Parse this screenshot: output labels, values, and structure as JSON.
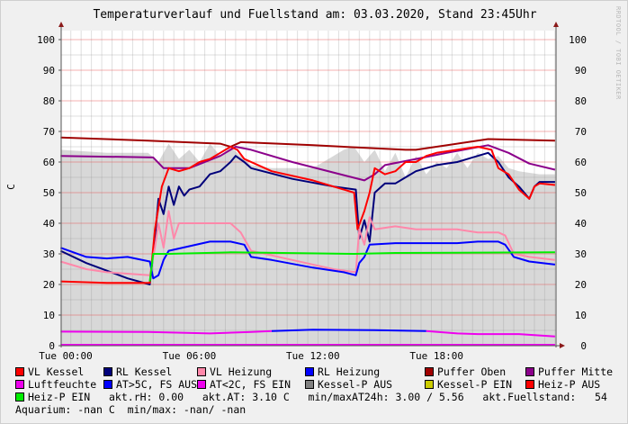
{
  "chart_data": {
    "type": "line",
    "title": "Temperaturverlauf und Fuellstand am: 03.03.2020, Stand 23:45Uhr",
    "ylabel": "C",
    "xlabel": "",
    "ylim": [
      0,
      103
    ],
    "xlim": [
      "Mon 23:45",
      "Tue 23:45"
    ],
    "y_ticks": [
      "0",
      "10",
      "20",
      "30",
      "40",
      "50",
      "60",
      "70",
      "80",
      "90",
      "100"
    ],
    "x_ticks": [
      "Tue 00:00",
      "Tue 06:00",
      "Tue 12:00",
      "Tue 18:00"
    ],
    "grid": true,
    "watermark": "RRDTOOL / TOBI OETIKER",
    "series": [
      {
        "name": "Kessel-P AUS",
        "color": "#d8d8d8",
        "kind": "area",
        "points": [
          [
            "-00:15",
            64
          ],
          [
            "02:00",
            63
          ],
          [
            "04:00",
            63
          ],
          [
            "04:30",
            60
          ],
          [
            "05:00",
            66
          ],
          [
            "05:30",
            61
          ],
          [
            "06:00",
            64
          ],
          [
            "06:30",
            60
          ],
          [
            "07:00",
            66
          ],
          [
            "07:30",
            62
          ],
          [
            "08:00",
            65
          ],
          [
            "08:30",
            62
          ],
          [
            "09:00",
            59
          ],
          [
            "10:00",
            58
          ],
          [
            "11:00",
            58
          ],
          [
            "12:00",
            58
          ],
          [
            "12:30",
            60
          ],
          [
            "13:00",
            62
          ],
          [
            "13:30",
            64
          ],
          [
            "14:00",
            65
          ],
          [
            "14:30",
            60
          ],
          [
            "15:00",
            64
          ],
          [
            "15:30",
            57
          ],
          [
            "16:00",
            63
          ],
          [
            "16:30",
            55
          ],
          [
            "17:00",
            62
          ],
          [
            "17:30",
            56
          ],
          [
            "18:00",
            60
          ],
          [
            "18:30",
            58
          ],
          [
            "19:00",
            63
          ],
          [
            "19:30",
            58
          ],
          [
            "20:00",
            63
          ],
          [
            "20:30",
            61
          ],
          [
            "21:00",
            62
          ],
          [
            "21:30",
            58
          ],
          [
            "22:00",
            57
          ],
          [
            "23:00",
            56
          ],
          [
            "23:45",
            56
          ]
        ]
      },
      {
        "name": "Puffer Oben",
        "color": "#a00000",
        "points": [
          [
            "-00:15",
            68
          ],
          [
            "04:00",
            67
          ],
          [
            "07:30",
            66
          ],
          [
            "08:00",
            65
          ],
          [
            "08:30",
            66.5
          ],
          [
            "12:00",
            65.5
          ],
          [
            "16:30",
            64
          ],
          [
            "17:00",
            64
          ],
          [
            "18:00",
            65
          ],
          [
            "20:30",
            67.5
          ],
          [
            "23:45",
            67
          ]
        ]
      },
      {
        "name": "Puffer Mitte",
        "color": "#8b008b",
        "points": [
          [
            "-00:15",
            62
          ],
          [
            "04:15",
            61.5
          ],
          [
            "04:45",
            58
          ],
          [
            "06:00",
            58
          ],
          [
            "07:30",
            62
          ],
          [
            "08:15",
            65
          ],
          [
            "09:00",
            64
          ],
          [
            "11:00",
            60
          ],
          [
            "14:30",
            54
          ],
          [
            "15:00",
            56
          ],
          [
            "15:30",
            59
          ],
          [
            "17:00",
            61
          ],
          [
            "18:30",
            63
          ],
          [
            "20:30",
            65.5
          ],
          [
            "21:30",
            63
          ],
          [
            "22:30",
            59.5
          ],
          [
            "23:45",
            57.5
          ]
        ]
      },
      {
        "name": "RL Kessel",
        "color": "#00007a",
        "points": [
          [
            "-00:15",
            31
          ],
          [
            "01:00",
            27
          ],
          [
            "02:00",
            24.5
          ],
          [
            "03:00",
            22
          ],
          [
            "04:05",
            20
          ],
          [
            "04:20",
            35
          ],
          [
            "04:30",
            48
          ],
          [
            "04:45",
            43
          ],
          [
            "05:00",
            52
          ],
          [
            "05:15",
            46
          ],
          [
            "05:30",
            52
          ],
          [
            "05:45",
            49
          ],
          [
            "06:00",
            51
          ],
          [
            "06:30",
            52
          ],
          [
            "07:00",
            56
          ],
          [
            "07:30",
            57
          ],
          [
            "08:00",
            60
          ],
          [
            "08:15",
            62
          ],
          [
            "08:40",
            60
          ],
          [
            "09:00",
            58
          ],
          [
            "11:00",
            54.5
          ],
          [
            "13:00",
            52
          ],
          [
            "14:05",
            51
          ],
          [
            "14:15",
            35
          ],
          [
            "14:30",
            41
          ],
          [
            "14:45",
            34
          ],
          [
            "15:00",
            50
          ],
          [
            "15:30",
            53
          ],
          [
            "16:00",
            53
          ],
          [
            "16:30",
            55
          ],
          [
            "17:00",
            57
          ],
          [
            "17:30",
            58
          ],
          [
            "18:00",
            59
          ],
          [
            "19:00",
            60
          ],
          [
            "20:00",
            62
          ],
          [
            "20:30",
            63
          ],
          [
            "21:00",
            60
          ],
          [
            "21:30",
            55
          ],
          [
            "22:00",
            52
          ],
          [
            "22:30",
            48
          ],
          [
            "22:45",
            52
          ],
          [
            "23:00",
            53.5
          ],
          [
            "23:45",
            53.5
          ]
        ]
      },
      {
        "name": "VL Kessel",
        "color": "#ff0000",
        "points": [
          [
            "-00:15",
            21
          ],
          [
            "02:00",
            20.5
          ],
          [
            "04:05",
            20.5
          ],
          [
            "04:20",
            38
          ],
          [
            "04:40",
            52
          ],
          [
            "05:00",
            58
          ],
          [
            "05:30",
            57
          ],
          [
            "06:00",
            58
          ],
          [
            "06:30",
            60
          ],
          [
            "07:00",
            61
          ],
          [
            "07:30",
            63
          ],
          [
            "08:00",
            65
          ],
          [
            "08:20",
            64
          ],
          [
            "08:40",
            61
          ],
          [
            "10:00",
            57
          ],
          [
            "12:00",
            54
          ],
          [
            "14:00",
            50
          ],
          [
            "14:10",
            38
          ],
          [
            "14:30",
            44
          ],
          [
            "14:45",
            50
          ],
          [
            "15:00",
            58
          ],
          [
            "15:30",
            56
          ],
          [
            "16:00",
            57
          ],
          [
            "16:30",
            60
          ],
          [
            "17:00",
            60
          ],
          [
            "17:30",
            62
          ],
          [
            "18:00",
            63
          ],
          [
            "19:00",
            64
          ],
          [
            "20:00",
            65
          ],
          [
            "20:40",
            64
          ],
          [
            "21:00",
            58
          ],
          [
            "21:30",
            56
          ],
          [
            "22:00",
            51
          ],
          [
            "22:30",
            48
          ],
          [
            "22:45",
            52
          ],
          [
            "23:00",
            53
          ],
          [
            "23:45",
            52.5
          ]
        ]
      },
      {
        "name": "VL Heizung",
        "color": "#ff88aa",
        "points": [
          [
            "-00:15",
            27.5
          ],
          [
            "01:00",
            25
          ],
          [
            "02:00",
            24
          ],
          [
            "04:05",
            23
          ],
          [
            "04:20",
            32
          ],
          [
            "04:30",
            40
          ],
          [
            "04:45",
            32
          ],
          [
            "05:00",
            44
          ],
          [
            "05:15",
            35
          ],
          [
            "05:30",
            40
          ],
          [
            "06:00",
            40
          ],
          [
            "07:00",
            40
          ],
          [
            "08:00",
            40
          ],
          [
            "08:30",
            37
          ],
          [
            "09:00",
            31
          ],
          [
            "11:00",
            28
          ],
          [
            "13:00",
            25
          ],
          [
            "14:05",
            24
          ],
          [
            "14:15",
            38
          ],
          [
            "14:30",
            33
          ],
          [
            "14:45",
            42
          ],
          [
            "15:00",
            38
          ],
          [
            "16:00",
            39
          ],
          [
            "17:00",
            38
          ],
          [
            "18:00",
            38
          ],
          [
            "19:00",
            38
          ],
          [
            "20:00",
            37
          ],
          [
            "21:00",
            37
          ],
          [
            "21:20",
            36
          ],
          [
            "21:45",
            30
          ],
          [
            "22:30",
            29
          ],
          [
            "23:45",
            28
          ]
        ]
      },
      {
        "name": "RL Heizung",
        "color": "#0000ff",
        "points": [
          [
            "-00:15",
            32
          ],
          [
            "01:00",
            29
          ],
          [
            "02:00",
            28.5
          ],
          [
            "03:00",
            29
          ],
          [
            "04:05",
            27.5
          ],
          [
            "04:15",
            22
          ],
          [
            "04:30",
            23
          ],
          [
            "04:45",
            28
          ],
          [
            "05:00",
            31
          ],
          [
            "06:00",
            32.5
          ],
          [
            "07:00",
            34
          ],
          [
            "08:00",
            34
          ],
          [
            "08:40",
            33
          ],
          [
            "09:00",
            29
          ],
          [
            "10:00",
            28
          ],
          [
            "12:00",
            25.5
          ],
          [
            "13:30",
            24
          ],
          [
            "14:05",
            23
          ],
          [
            "14:15",
            27
          ],
          [
            "14:30",
            29
          ],
          [
            "14:45",
            33
          ],
          [
            "16:00",
            33.5
          ],
          [
            "18:00",
            33.5
          ],
          [
            "19:00",
            33.5
          ],
          [
            "20:00",
            34
          ],
          [
            "21:00",
            34
          ],
          [
            "21:20",
            33
          ],
          [
            "21:45",
            29
          ],
          [
            "22:30",
            27.5
          ],
          [
            "23:45",
            26.5
          ]
        ]
      },
      {
        "name": "Heiz-P EIN",
        "color": "#00ee00",
        "points": [
          [
            "04:05",
            21
          ],
          [
            "04:15",
            30
          ],
          [
            "05:00",
            30
          ],
          [
            "08:00",
            30.5
          ],
          [
            "14:00",
            30
          ],
          [
            "16:00",
            30.3
          ],
          [
            "23:45",
            30.5
          ]
        ]
      },
      {
        "name": "AT<2C, FS EIN",
        "color": "#ee00ee",
        "points": [
          [
            "-00:15",
            4.6
          ],
          [
            "04:00",
            4.5
          ],
          [
            "07:00",
            4.0
          ],
          [
            "09:00",
            4.5
          ],
          [
            "10:00",
            4.8
          ]
        ]
      },
      {
        "name": "AT>5C, FS AUS",
        "color": "#0000ff",
        "points": [
          [
            "10:00",
            4.8
          ],
          [
            "12:00",
            5.2
          ],
          [
            "15:00",
            5.1
          ],
          [
            "17:30",
            4.8
          ]
        ]
      },
      {
        "name": "AT<2C, FS EIN",
        "color": "#ee00ee",
        "points": [
          [
            "17:30",
            4.8
          ],
          [
            "19:00",
            4.0
          ],
          [
            "20:00",
            3.8
          ],
          [
            "22:00",
            3.8
          ],
          [
            "23:45",
            3.0
          ]
        ]
      },
      {
        "name": "Luftfeuchte",
        "color": "#ee00ee",
        "points": [
          [
            "-00:15",
            0.3
          ],
          [
            "23:45",
            0.3
          ]
        ]
      }
    ]
  },
  "legend": {
    "rows": [
      [
        {
          "label": "VL Kessel",
          "color": "#ff0000"
        },
        {
          "label": "RL Kessel",
          "color": "#00007a"
        },
        {
          "label": "VL Heizung",
          "color": "#ff88aa"
        },
        {
          "label": "RL Heizung",
          "color": "#0000ff"
        },
        {
          "label": "Puffer Oben",
          "color": "#a00000"
        },
        {
          "label": "Puffer Mitte",
          "color": "#8b008b"
        }
      ],
      [
        {
          "label": "Luftfeuchte",
          "color": "#ee00ee"
        },
        {
          "label": "AT>5C, FS AUS",
          "color": "#0000ff"
        },
        {
          "label": "AT<2C, FS EIN",
          "color": "#ee00ee"
        },
        {
          "label": "Kessel-P AUS",
          "color": "#808080"
        },
        {
          "label": "Kessel-P EIN",
          "color": "#cccc00"
        },
        {
          "label": "Heiz-P AUS",
          "color": "#ff0000"
        }
      ]
    ],
    "heizp_ein": {
      "label": "Heiz-P EIN",
      "color": "#00ee00"
    },
    "status_line": "akt.rH: 0.00   akt.AT: 3.10 C   min/maxAT24h: 3.00 / 5.56   akt.Fuellstand:   54",
    "aquarium_line": "Aquarium: -nan C  min/max: -nan/ -nan"
  }
}
